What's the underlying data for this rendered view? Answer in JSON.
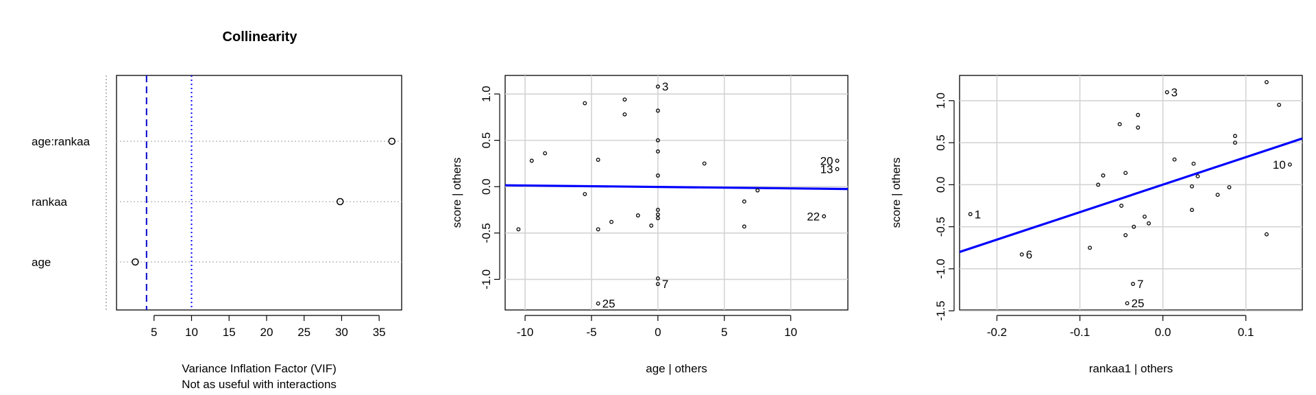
{
  "chart_data": [
    {
      "type": "scatter",
      "title": "Collinearity",
      "xlabel": "Variance Inflation Factor (VIF)",
      "xlabel2": "Not as useful with interactions",
      "ylabel": "",
      "xlim": [
        0,
        38
      ],
      "xticks": [
        5,
        10,
        15,
        20,
        25,
        30,
        35
      ],
      "categories": [
        "age",
        "rankaa",
        "age:rankaa"
      ],
      "values": [
        2.5,
        29.8,
        36.7
      ],
      "reference_lines": [
        {
          "value": 4,
          "style": "dashed",
          "color": "#0000cc"
        },
        {
          "value": 10,
          "style": "dotted",
          "color": "#0000ff"
        }
      ],
      "grid": "horizontal-dotted"
    },
    {
      "type": "scatter",
      "title": "",
      "xlabel": "age | others",
      "ylabel": "score  | others",
      "xlim": [
        -11.5,
        14.3
      ],
      "ylim": [
        -1.33,
        1.2
      ],
      "xticks": [
        -10,
        -5,
        0,
        5,
        10
      ],
      "yticks": [
        -1.0,
        -0.5,
        0.0,
        0.5,
        1.0
      ],
      "grid": true,
      "fit_line": {
        "x": [
          -11.5,
          14.3
        ],
        "y": [
          0.015,
          -0.025
        ],
        "color": "#0000ff"
      },
      "points": [
        {
          "x": -10.5,
          "y": -0.46
        },
        {
          "x": -9.5,
          "y": 0.28
        },
        {
          "x": -8.5,
          "y": 0.36
        },
        {
          "x": -5.5,
          "y": 0.9
        },
        {
          "x": -5.5,
          "y": -0.08
        },
        {
          "x": -4.5,
          "y": 0.29
        },
        {
          "x": -4.5,
          "y": -0.46
        },
        {
          "x": -4.5,
          "y": -1.26,
          "label": "25"
        },
        {
          "x": -3.5,
          "y": -0.38
        },
        {
          "x": -2.5,
          "y": 0.94
        },
        {
          "x": -2.5,
          "y": 0.78
        },
        {
          "x": -1.5,
          "y": -0.31
        },
        {
          "x": -0.5,
          "y": -0.42
        },
        {
          "x": 0.0,
          "y": 1.08,
          "label": "3"
        },
        {
          "x": 0.0,
          "y": 0.82
        },
        {
          "x": 0.0,
          "y": 0.5
        },
        {
          "x": 0.0,
          "y": 0.38
        },
        {
          "x": 0.0,
          "y": 0.12
        },
        {
          "x": 0.0,
          "y": -0.25
        },
        {
          "x": 0.0,
          "y": -0.3
        },
        {
          "x": 0.0,
          "y": -0.34
        },
        {
          "x": 0.0,
          "y": -0.99
        },
        {
          "x": 0.0,
          "y": -1.05,
          "label": "7"
        },
        {
          "x": 3.5,
          "y": 0.25
        },
        {
          "x": 6.5,
          "y": -0.16
        },
        {
          "x": 6.5,
          "y": -0.43
        },
        {
          "x": 7.5,
          "y": -0.04
        },
        {
          "x": 12.5,
          "y": -0.32,
          "label": "22"
        },
        {
          "x": 13.5,
          "y": 0.28,
          "label": "20"
        },
        {
          "x": 13.5,
          "y": 0.19,
          "label": "13"
        }
      ]
    },
    {
      "type": "scatter",
      "title": "",
      "xlabel": "rankaa1 | others",
      "ylabel": "score  | others",
      "xlim": [
        -0.245,
        0.168
      ],
      "ylim": [
        -1.49,
        1.3
      ],
      "xticks": [
        -0.2,
        -0.1,
        0.0,
        0.1
      ],
      "yticks": [
        -1.5,
        -1.0,
        -0.5,
        0.0,
        0.5,
        1.0
      ],
      "grid": true,
      "fit_line": {
        "x": [
          -0.245,
          0.168
        ],
        "y": [
          -0.8,
          0.55
        ],
        "color": "#0000ff"
      },
      "points": [
        {
          "x": -0.232,
          "y": -0.35,
          "label": "1"
        },
        {
          "x": -0.17,
          "y": -0.83,
          "label": "6"
        },
        {
          "x": -0.088,
          "y": -0.75
        },
        {
          "x": -0.078,
          "y": 0.0
        },
        {
          "x": -0.072,
          "y": 0.11
        },
        {
          "x": -0.052,
          "y": 0.72
        },
        {
          "x": -0.05,
          "y": -0.25
        },
        {
          "x": -0.045,
          "y": 0.14
        },
        {
          "x": -0.045,
          "y": -0.6
        },
        {
          "x": -0.043,
          "y": -1.41,
          "label": "25"
        },
        {
          "x": -0.036,
          "y": -1.18,
          "label": "7"
        },
        {
          "x": -0.035,
          "y": -0.5
        },
        {
          "x": -0.03,
          "y": 0.83
        },
        {
          "x": -0.03,
          "y": 0.68
        },
        {
          "x": -0.022,
          "y": -0.38
        },
        {
          "x": -0.017,
          "y": -0.46
        },
        {
          "x": 0.005,
          "y": 1.1,
          "label": "3"
        },
        {
          "x": 0.014,
          "y": 0.3
        },
        {
          "x": 0.035,
          "y": -0.02
        },
        {
          "x": 0.035,
          "y": -0.3
        },
        {
          "x": 0.037,
          "y": 0.25
        },
        {
          "x": 0.042,
          "y": 0.1
        },
        {
          "x": 0.066,
          "y": -0.12
        },
        {
          "x": 0.08,
          "y": -0.03
        },
        {
          "x": 0.087,
          "y": 0.58
        },
        {
          "x": 0.087,
          "y": 0.5
        },
        {
          "x": 0.125,
          "y": 1.22
        },
        {
          "x": 0.125,
          "y": -0.59
        },
        {
          "x": 0.14,
          "y": 0.95
        },
        {
          "x": 0.153,
          "y": 0.24,
          "label": "10"
        }
      ]
    }
  ]
}
